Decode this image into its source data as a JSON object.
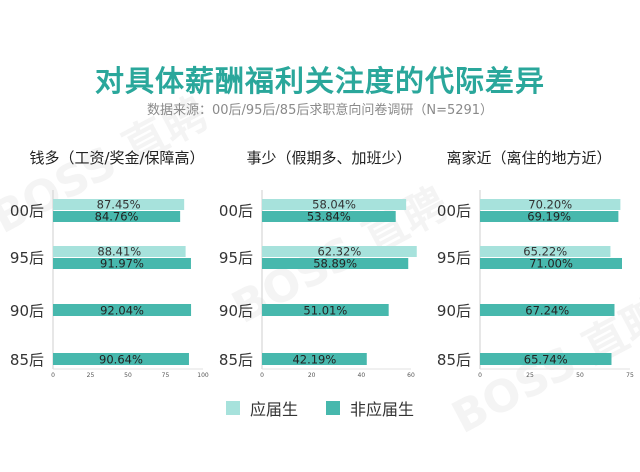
{
  "title": "对具体薪酬福利关注度的代际差异",
  "subtitle": "数据来源：00后/95后/85后求职意向问卷调研（N=5291）",
  "watermark": "BOSS 直聘",
  "colors": {
    "fresh_grad": "#a7e2dc",
    "non_fresh_grad": "#47b8ad"
  },
  "legend": {
    "fresh_grad": "应届生",
    "non_fresh_grad": "非应届生"
  },
  "chart_data": {
    "type": "bar",
    "orientation": "horizontal",
    "categories": [
      "00后",
      "95后",
      "90后",
      "85后"
    ],
    "series_names": [
      "应届生",
      "非应届生"
    ],
    "panels": [
      {
        "title": "钱多（工资/奖金/保障高）",
        "ticks": [
          0,
          25,
          50,
          75,
          100
        ],
        "xlim": [
          0,
          100
        ],
        "fresh_grad": [
          87.45,
          88.41,
          null,
          null
        ],
        "non_fresh_grad": [
          84.76,
          91.97,
          92.04,
          90.64
        ]
      },
      {
        "title": "事少（假期多、加班少）",
        "ticks": [
          0,
          20,
          40,
          60
        ],
        "xlim": [
          0,
          60
        ],
        "fresh_grad": [
          58.04,
          62.32,
          null,
          null
        ],
        "non_fresh_grad": [
          53.84,
          58.89,
          51.01,
          42.19
        ]
      },
      {
        "title": "离家近（离住的地方近）",
        "ticks": [
          0,
          25,
          50,
          75
        ],
        "xlim": [
          0,
          75
        ],
        "fresh_grad": [
          70.2,
          65.22,
          null,
          null
        ],
        "non_fresh_grad": [
          69.19,
          71.0,
          67.24,
          65.74
        ]
      }
    ]
  }
}
